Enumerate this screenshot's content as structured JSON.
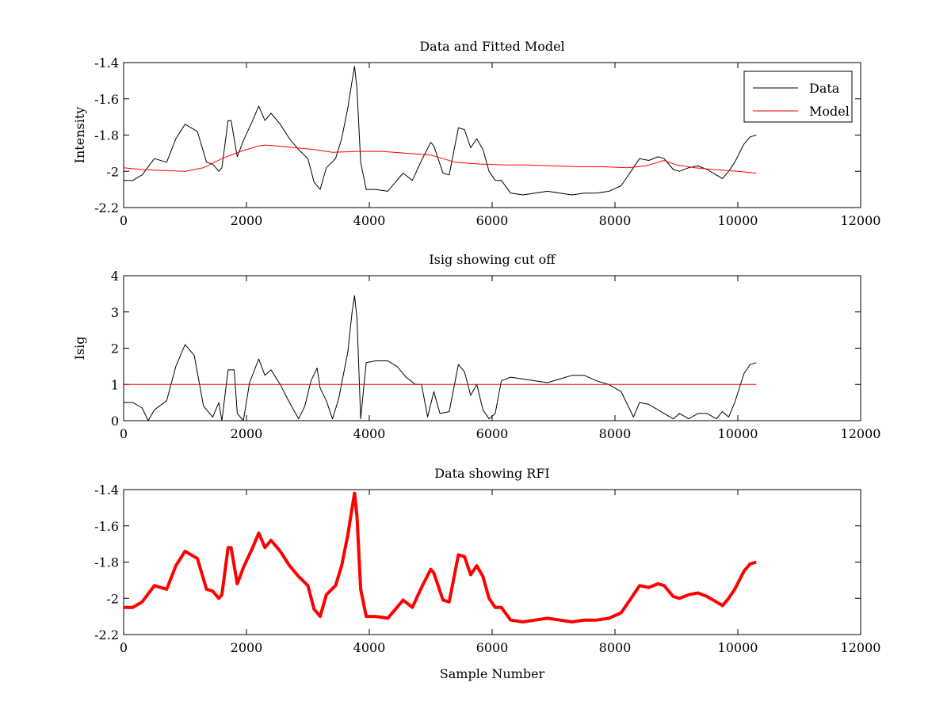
{
  "figure": {
    "xlabel": "Sample Number"
  },
  "chart_data": [
    {
      "type": "line",
      "title": "Data and Fitted Model",
      "ylabel": "Intensity",
      "xlabel": "",
      "xlim": [
        0,
        12000
      ],
      "ylim": [
        -2.2,
        -1.4
      ],
      "x_ticks": [
        0,
        2000,
        4000,
        6000,
        8000,
        10000,
        12000
      ],
      "y_ticks": [
        -2.2,
        -2,
        -1.8,
        -1.6,
        -1.4
      ],
      "legend": "top-right",
      "series": [
        {
          "name": "Data",
          "color": "#000000",
          "x": [
            0,
            150,
            300,
            500,
            700,
            850,
            1000,
            1200,
            1350,
            1450,
            1550,
            1600,
            1700,
            1750,
            1850,
            1950,
            2100,
            2200,
            2300,
            2400,
            2550,
            2700,
            2850,
            3000,
            3100,
            3200,
            3300,
            3450,
            3550,
            3650,
            3720,
            3760,
            3800,
            3860,
            3950,
            4100,
            4300,
            4450,
            4550,
            4700,
            4850,
            5000,
            5050,
            5200,
            5300,
            5450,
            5550,
            5650,
            5750,
            5850,
            5950,
            6050,
            6150,
            6300,
            6500,
            6700,
            6900,
            7100,
            7300,
            7500,
            7700,
            7900,
            8100,
            8300,
            8400,
            8550,
            8700,
            8800,
            8950,
            9050,
            9200,
            9350,
            9500,
            9650,
            9750,
            9850,
            9950,
            10100,
            10200,
            10300
          ],
          "values": [
            -2.05,
            -2.05,
            -2.02,
            -1.93,
            -1.95,
            -1.82,
            -1.74,
            -1.78,
            -1.95,
            -1.96,
            -2.0,
            -1.98,
            -1.72,
            -1.72,
            -1.92,
            -1.83,
            -1.72,
            -1.64,
            -1.72,
            -1.68,
            -1.74,
            -1.82,
            -1.88,
            -1.93,
            -2.06,
            -2.1,
            -1.98,
            -1.93,
            -1.82,
            -1.65,
            -1.5,
            -1.42,
            -1.55,
            -1.95,
            -2.1,
            -2.1,
            -2.11,
            -2.05,
            -2.01,
            -2.05,
            -1.94,
            -1.84,
            -1.86,
            -2.01,
            -2.02,
            -1.76,
            -1.77,
            -1.87,
            -1.82,
            -1.88,
            -2.0,
            -2.05,
            -2.05,
            -2.12,
            -2.13,
            -2.12,
            -2.11,
            -2.12,
            -2.13,
            -2.12,
            -2.12,
            -2.11,
            -2.08,
            -1.98,
            -1.93,
            -1.94,
            -1.92,
            -1.93,
            -1.99,
            -2.0,
            -1.98,
            -1.97,
            -1.99,
            -2.02,
            -2.04,
            -2.0,
            -1.95,
            -1.85,
            -1.81,
            -1.8
          ]
        },
        {
          "name": "Model",
          "color": "#ff0000",
          "x": [
            0,
            300,
            600,
            1000,
            1300,
            1600,
            1900,
            2200,
            2300,
            2500,
            2800,
            3100,
            3400,
            3800,
            4200,
            4600,
            5000,
            5400,
            5800,
            6200,
            6600,
            7000,
            7400,
            7800,
            8200,
            8500,
            8700,
            8800,
            9000,
            9300,
            9600,
            10000,
            10300
          ],
          "values": [
            -1.98,
            -1.99,
            -1.995,
            -2.0,
            -1.98,
            -1.93,
            -1.89,
            -1.86,
            -1.855,
            -1.86,
            -1.87,
            -1.88,
            -1.895,
            -1.89,
            -1.89,
            -1.9,
            -1.91,
            -1.95,
            -1.96,
            -1.965,
            -1.965,
            -1.97,
            -1.975,
            -1.975,
            -1.98,
            -1.97,
            -1.95,
            -1.94,
            -1.965,
            -1.98,
            -1.99,
            -2.0,
            -2.01
          ]
        }
      ]
    },
    {
      "type": "line",
      "title": "Isig showing cut off",
      "ylabel": "Isig",
      "xlabel": "",
      "xlim": [
        0,
        12000
      ],
      "ylim": [
        0,
        4
      ],
      "x_ticks": [
        0,
        2000,
        4000,
        6000,
        8000,
        10000,
        12000
      ],
      "y_ticks": [
        0,
        1,
        2,
        3,
        4
      ],
      "series": [
        {
          "color": "#000000",
          "x": [
            0,
            150,
            300,
            400,
            500,
            700,
            850,
            1000,
            1150,
            1300,
            1450,
            1550,
            1600,
            1700,
            1800,
            1850,
            1950,
            2050,
            2200,
            2300,
            2400,
            2550,
            2700,
            2850,
            2950,
            3050,
            3150,
            3200,
            3300,
            3400,
            3500,
            3650,
            3720,
            3760,
            3800,
            3860,
            3950,
            4100,
            4300,
            4450,
            4600,
            4750,
            4850,
            4950,
            5050,
            5150,
            5300,
            5450,
            5550,
            5650,
            5750,
            5850,
            5950,
            6050,
            6150,
            6300,
            6500,
            6700,
            6900,
            7100,
            7300,
            7500,
            7700,
            7900,
            8100,
            8300,
            8400,
            8550,
            8700,
            8800,
            8950,
            9050,
            9200,
            9350,
            9500,
            9650,
            9750,
            9850,
            9950,
            10100,
            10200,
            10300
          ],
          "values": [
            0.5,
            0.5,
            0.35,
            0.0,
            0.3,
            0.55,
            1.5,
            2.1,
            1.8,
            0.4,
            0.1,
            0.5,
            0.0,
            1.4,
            1.4,
            0.2,
            0.0,
            1.05,
            1.7,
            1.25,
            1.4,
            1.0,
            0.5,
            0.05,
            0.4,
            1.1,
            1.45,
            0.9,
            0.55,
            0.05,
            0.6,
            1.9,
            3.0,
            3.45,
            2.8,
            0.05,
            1.6,
            1.65,
            1.65,
            1.5,
            1.2,
            1.0,
            1.0,
            0.1,
            0.8,
            0.2,
            0.25,
            1.55,
            1.35,
            0.7,
            1.0,
            0.3,
            0.05,
            0.2,
            1.1,
            1.2,
            1.15,
            1.1,
            1.05,
            1.15,
            1.25,
            1.25,
            1.1,
            1.0,
            0.8,
            0.1,
            0.5,
            0.45,
            0.3,
            0.2,
            0.05,
            0.2,
            0.05,
            0.2,
            0.2,
            0.05,
            0.25,
            0.1,
            0.5,
            1.3,
            1.55,
            1.6
          ]
        },
        {
          "color": "#ff0000",
          "x": [
            0,
            10300
          ],
          "values": [
            1.0,
            1.0
          ]
        }
      ]
    },
    {
      "type": "line",
      "title": "Data showing RFI",
      "ylabel": "",
      "xlabel": "Sample Number",
      "xlim": [
        0,
        12000
      ],
      "ylim": [
        -2.2,
        -1.4
      ],
      "x_ticks": [
        0,
        2000,
        4000,
        6000,
        8000,
        10000,
        12000
      ],
      "y_ticks": [
        -2.2,
        -2,
        -1.8,
        -1.6,
        -1.4
      ],
      "series": [
        {
          "color": "#ff0000",
          "x": [
            0,
            150,
            300,
            500,
            700,
            850,
            1000,
            1200,
            1350,
            1450,
            1550,
            1600,
            1700,
            1750,
            1850,
            1950,
            2100,
            2200,
            2300,
            2400,
            2550,
            2700,
            2850,
            3000,
            3100,
            3200,
            3300,
            3450,
            3550,
            3650,
            3720,
            3760,
            3800,
            3860,
            3950,
            4100,
            4300,
            4450,
            4550,
            4700,
            4850,
            5000,
            5050,
            5200,
            5300,
            5450,
            5550,
            5650,
            5750,
            5850,
            5950,
            6050,
            6150,
            6300,
            6500,
            6700,
            6900,
            7100,
            7300,
            7500,
            7700,
            7900,
            8100,
            8300,
            8400,
            8550,
            8700,
            8800,
            8950,
            9050,
            9200,
            9350,
            9500,
            9650,
            9750,
            9850,
            9950,
            10100,
            10200,
            10300
          ],
          "values": [
            -2.05,
            -2.05,
            -2.02,
            -1.93,
            -1.95,
            -1.82,
            -1.74,
            -1.78,
            -1.95,
            -1.96,
            -2.0,
            -1.98,
            -1.72,
            -1.72,
            -1.92,
            -1.83,
            -1.72,
            -1.64,
            -1.72,
            -1.68,
            -1.74,
            -1.82,
            -1.88,
            -1.93,
            -2.06,
            -2.1,
            -1.98,
            -1.93,
            -1.82,
            -1.65,
            -1.5,
            -1.42,
            -1.55,
            -1.95,
            -2.1,
            -2.1,
            -2.11,
            -2.05,
            -2.01,
            -2.05,
            -1.94,
            -1.84,
            -1.86,
            -2.01,
            -2.02,
            -1.76,
            -1.77,
            -1.87,
            -1.82,
            -1.88,
            -2.0,
            -2.05,
            -2.05,
            -2.12,
            -2.13,
            -2.12,
            -2.11,
            -2.12,
            -2.13,
            -2.12,
            -2.12,
            -2.11,
            -2.08,
            -1.98,
            -1.93,
            -1.94,
            -1.92,
            -1.93,
            -1.99,
            -2.0,
            -1.98,
            -1.97,
            -1.99,
            -2.02,
            -2.04,
            -2.0,
            -1.95,
            -1.85,
            -1.81,
            -1.8
          ]
        }
      ]
    }
  ]
}
